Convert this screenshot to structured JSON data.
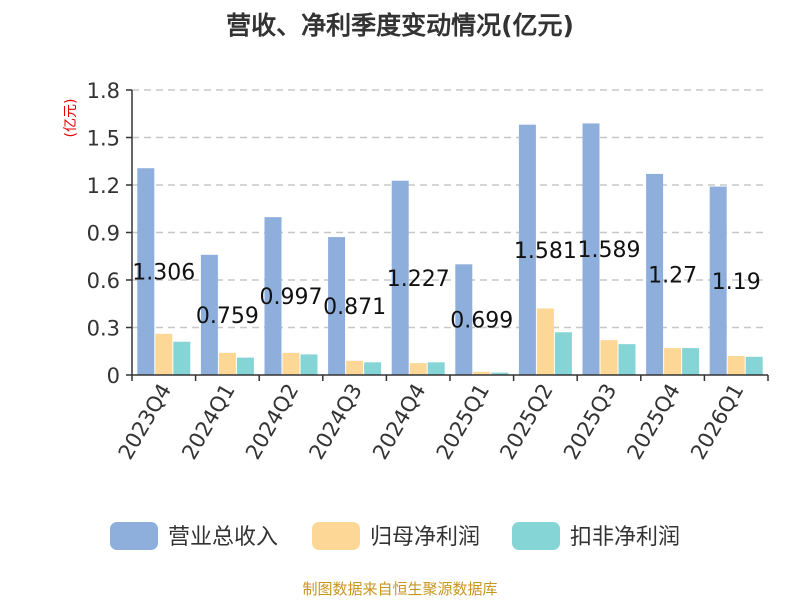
{
  "chart_data": {
    "type": "bar",
    "title": "营收、净利季度变动情况(亿元)",
    "ylabel": "(亿元)",
    "xlabel": "",
    "ylim": [
      0,
      1.8
    ],
    "yticks": [
      "0",
      "0.3",
      "0.6",
      "0.9",
      "1.2",
      "1.5",
      "1.8"
    ],
    "grid": true,
    "legend_position": "bottom",
    "categories": [
      "2023Q4",
      "2024Q1",
      "2024Q2",
      "2024Q3",
      "2024Q4",
      "2025Q1",
      "2025Q2",
      "2025Q3",
      "2025Q4",
      "2026Q1"
    ],
    "series": [
      {
        "name": "营业总收入",
        "color": "#8eaedb",
        "values": [
          1.306,
          0.759,
          0.997,
          0.871,
          1.227,
          0.699,
          1.581,
          1.589,
          1.27,
          1.19
        ],
        "data_labels": [
          "1.306",
          "0.759",
          "0.997",
          "0.871",
          "1.227",
          "0.699",
          "1.581",
          "1.589",
          "1.27",
          "1.19"
        ]
      },
      {
        "name": "归母净利润",
        "color": "#fdd795",
        "values": [
          0.26,
          0.14,
          0.14,
          0.09,
          0.075,
          0.02,
          0.42,
          0.22,
          0.17,
          0.12
        ]
      },
      {
        "name": "扣非净利润",
        "color": "#86d5d6",
        "values": [
          0.21,
          0.11,
          0.13,
          0.08,
          0.08,
          0.015,
          0.27,
          0.195,
          0.17,
          0.115
        ]
      }
    ]
  },
  "source_text": "制图数据来自恒生聚源数据库"
}
